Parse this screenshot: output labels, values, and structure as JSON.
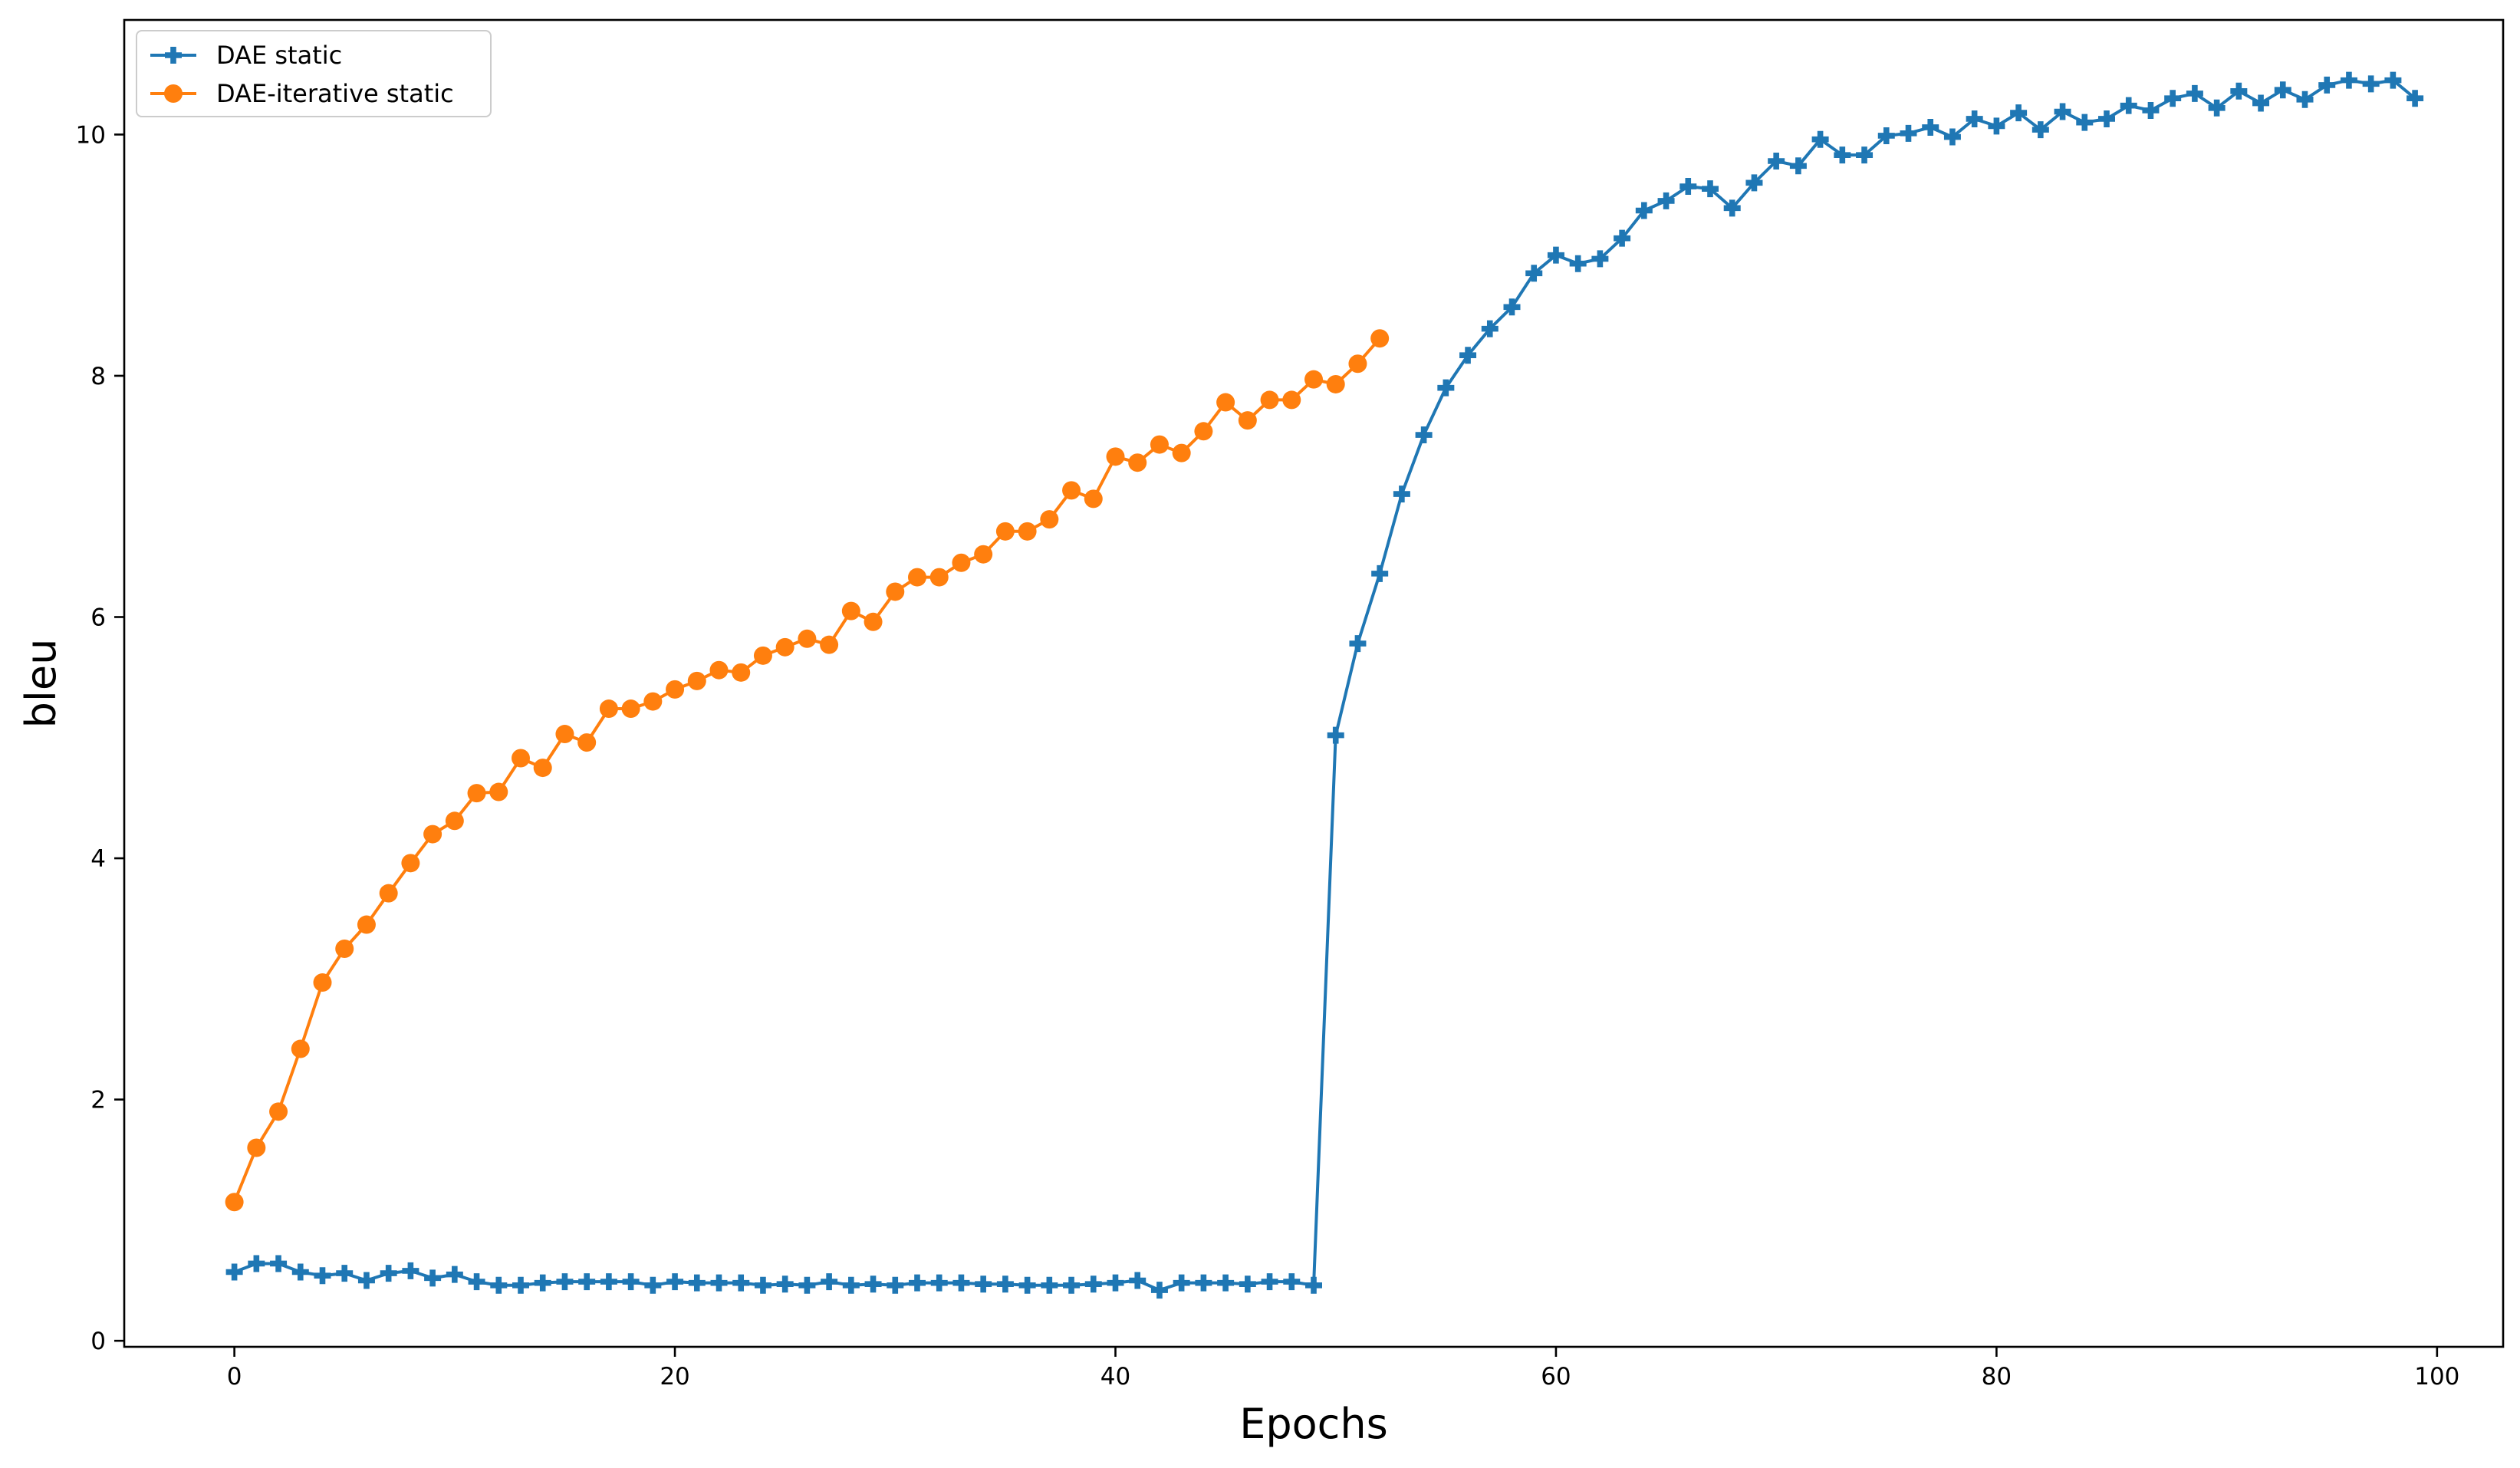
{
  "chart_data": {
    "type": "line",
    "title": "",
    "xlabel": "Epochs",
    "ylabel": "bleu",
    "xlim": [
      -5,
      103
    ],
    "ylim": [
      -0.05,
      10.95
    ],
    "xticks": [
      0,
      20,
      40,
      60,
      80,
      100
    ],
    "yticks": [
      0,
      2,
      4,
      6,
      8,
      10
    ],
    "grid": false,
    "legend_position": "top-left",
    "series": [
      {
        "name": "DAE static",
        "color": "#1f77b4",
        "marker": "plus-filled",
        "x": [
          0,
          1,
          2,
          3,
          4,
          5,
          6,
          7,
          8,
          9,
          10,
          11,
          12,
          13,
          14,
          15,
          16,
          17,
          18,
          19,
          20,
          21,
          22,
          23,
          24,
          25,
          26,
          27,
          28,
          29,
          30,
          31,
          32,
          33,
          34,
          35,
          36,
          37,
          38,
          39,
          40,
          41,
          42,
          43,
          44,
          45,
          46,
          47,
          48,
          49,
          50,
          51,
          52,
          53,
          54,
          55,
          56,
          57,
          58,
          59,
          60,
          61,
          62,
          63,
          64,
          65,
          66,
          67,
          68,
          69,
          70,
          71,
          72,
          73,
          74,
          75,
          76,
          77,
          78,
          79,
          80,
          81,
          82,
          83,
          84,
          85,
          86,
          87,
          88,
          89,
          90,
          91,
          92,
          93,
          94,
          95,
          96,
          97,
          98,
          99
        ],
        "values": [
          0.57,
          0.64,
          0.64,
          0.57,
          0.54,
          0.56,
          0.5,
          0.56,
          0.58,
          0.52,
          0.55,
          0.49,
          0.46,
          0.46,
          0.48,
          0.49,
          0.49,
          0.49,
          0.49,
          0.46,
          0.49,
          0.48,
          0.48,
          0.48,
          0.46,
          0.47,
          0.46,
          0.49,
          0.46,
          0.47,
          0.46,
          0.48,
          0.48,
          0.48,
          0.47,
          0.47,
          0.46,
          0.46,
          0.46,
          0.47,
          0.48,
          0.5,
          0.42,
          0.48,
          0.48,
          0.48,
          0.47,
          0.49,
          0.49,
          0.46,
          5.02,
          5.78,
          6.36,
          7.02,
          7.51,
          7.9,
          8.17,
          8.39,
          8.57,
          8.85,
          9.0,
          8.93,
          8.97,
          9.14,
          9.37,
          9.45,
          9.57,
          9.55,
          9.39,
          9.6,
          9.78,
          9.74,
          9.96,
          9.83,
          9.83,
          9.99,
          10.01,
          10.06,
          9.98,
          10.13,
          10.07,
          10.18,
          10.04,
          10.19,
          10.1,
          10.13,
          10.24,
          10.2,
          10.3,
          10.34,
          10.22,
          10.36,
          10.26,
          10.37,
          10.29,
          10.41,
          10.45,
          10.42,
          10.45,
          10.3
        ]
      },
      {
        "name": "DAE-iterative static",
        "color": "#ff7f0e",
        "marker": "circle",
        "x": [
          0,
          1,
          2,
          3,
          4,
          5,
          6,
          7,
          8,
          9,
          10,
          11,
          12,
          13,
          14,
          15,
          16,
          17,
          18,
          19,
          20,
          21,
          22,
          23,
          24,
          25,
          26,
          27,
          28,
          29,
          30,
          31,
          32,
          33,
          34,
          35,
          36,
          37,
          38,
          39,
          40,
          41,
          42,
          43,
          44,
          45,
          46,
          47,
          48,
          49,
          50,
          51,
          52
        ],
        "values": [
          1.15,
          1.6,
          1.9,
          2.42,
          2.97,
          3.25,
          3.45,
          3.71,
          3.96,
          4.2,
          4.31,
          4.54,
          4.55,
          4.83,
          4.75,
          5.03,
          4.96,
          5.24,
          5.24,
          5.3,
          5.4,
          5.47,
          5.56,
          5.54,
          5.68,
          5.75,
          5.82,
          5.77,
          6.05,
          5.96,
          6.21,
          6.33,
          6.33,
          6.45,
          6.52,
          6.71,
          6.71,
          6.81,
          7.05,
          6.98,
          7.33,
          7.28,
          7.43,
          7.36,
          7.54,
          7.78,
          7.63,
          7.8,
          7.8,
          7.97,
          7.93,
          8.1,
          8.31
        ]
      }
    ]
  }
}
